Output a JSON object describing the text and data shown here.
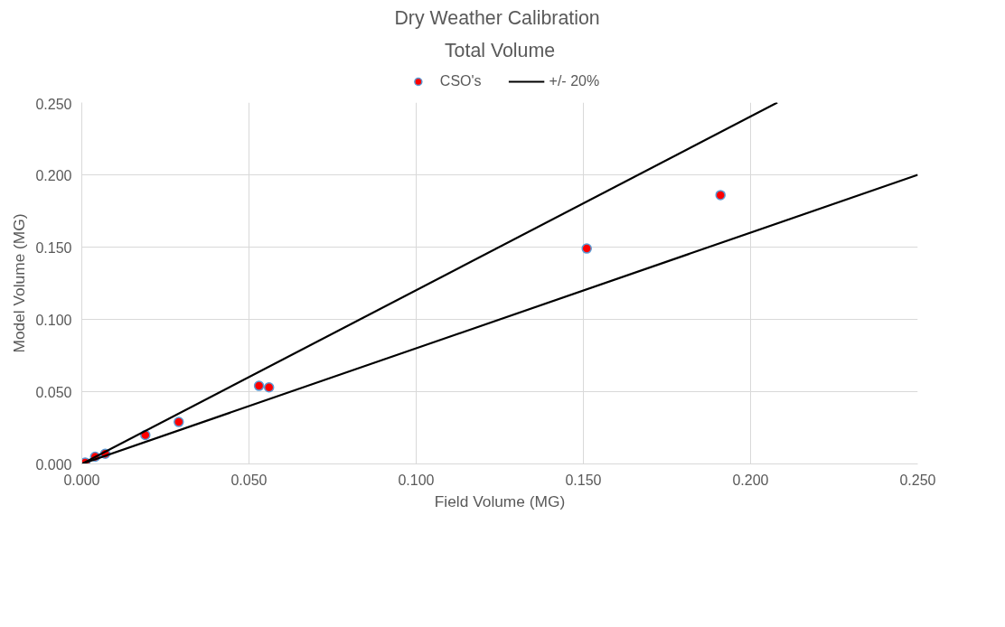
{
  "chart_data": {
    "type": "scatter",
    "title": "Dry Weather  Calibration",
    "subtitle": "Total Volume",
    "xlabel": "Field Volume (MG)",
    "ylabel": "Model Volume (MG)",
    "xlim": [
      0,
      0.25
    ],
    "ylim": [
      0,
      0.25
    ],
    "xticks": [
      {
        "value": 0,
        "label": "0.000"
      },
      {
        "value": 0.05,
        "label": "0.050"
      },
      {
        "value": 0.1,
        "label": "0.100"
      },
      {
        "value": 0.15,
        "label": "0.150"
      },
      {
        "value": 0.2,
        "label": "0.200"
      },
      {
        "value": 0.25,
        "label": "0.250"
      }
    ],
    "yticks": [
      {
        "value": 0,
        "label": "0.000"
      },
      {
        "value": 0.05,
        "label": "0.050"
      },
      {
        "value": 0.1,
        "label": "0.100"
      },
      {
        "value": 0.15,
        "label": "0.150"
      },
      {
        "value": 0.2,
        "label": "0.200"
      },
      {
        "value": 0.25,
        "label": "0.250"
      }
    ],
    "grid": true,
    "legend": "top",
    "series": [
      {
        "name": "CSO's",
        "marker": "circle",
        "color": "#ff0000",
        "x": [
          0.001,
          0.004,
          0.007,
          0.019,
          0.029,
          0.053,
          0.056,
          0.151,
          0.191
        ],
        "values": [
          0.001,
          0.005,
          0.007,
          0.02,
          0.029,
          0.054,
          0.053,
          0.149,
          0.186
        ]
      },
      {
        "name": "+/- 20%",
        "type": "line",
        "marker": "none",
        "color": "#000000",
        "line_style": "solid",
        "x": [
          0,
          0.208
        ],
        "values": [
          0,
          0.25
        ]
      },
      {
        "type": "line",
        "marker": "none",
        "color": "#000000",
        "line_style": "solid",
        "x": [
          0,
          0.25
        ],
        "values": [
          0,
          0.2
        ]
      }
    ]
  }
}
